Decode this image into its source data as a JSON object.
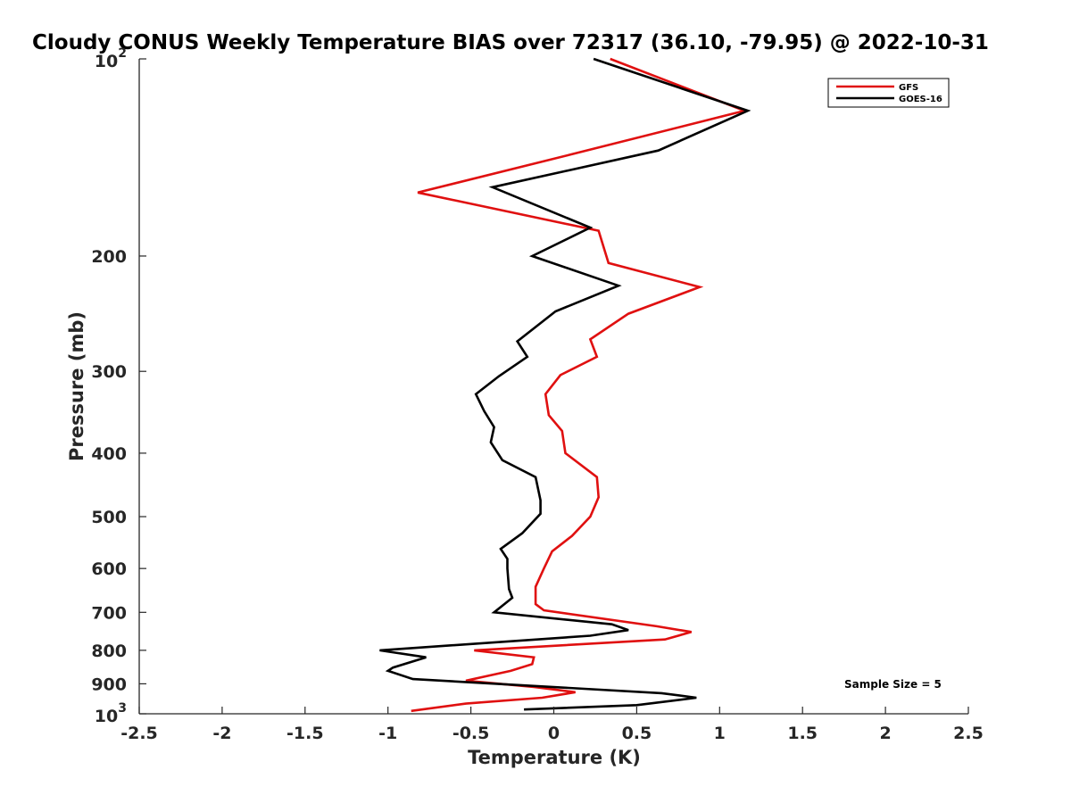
{
  "chart_data": {
    "type": "line",
    "title": "Cloudy CONUS Weekly Temperature BIAS over 72317 (36.10, -79.95) @ 2022-10-31",
    "xlabel": "Temperature (K)",
    "ylabel": "Pressure (mb)",
    "xlim": [
      -2.5,
      2.5
    ],
    "ylim": [
      1000,
      100
    ],
    "y_scale": "log",
    "y_reversed": true,
    "grid": false,
    "legend_position": "top-right",
    "x_ticks": [
      "-2.5",
      "-2",
      "-1.5",
      "-1",
      "-0.5",
      "0",
      "0.5",
      "1",
      "1.5",
      "2",
      "2.5"
    ],
    "y_ticks": [
      {
        "value": 100,
        "base": "10",
        "exp": "2"
      },
      {
        "value": 200,
        "label": "200"
      },
      {
        "value": 300,
        "label": "300"
      },
      {
        "value": 400,
        "label": "400"
      },
      {
        "value": 500,
        "label": "500"
      },
      {
        "value": 600,
        "label": "600"
      },
      {
        "value": 700,
        "label": "700"
      },
      {
        "value": 800,
        "label": "800"
      },
      {
        "value": 900,
        "label": "900"
      },
      {
        "value": 1000,
        "base": "10",
        "exp": "3"
      }
    ],
    "annotation": "Sample Size = 5",
    "series": [
      {
        "name": "GFS",
        "color": "#e01010",
        "points": [
          [
            0.34,
            100
          ],
          [
            1.15,
            120
          ],
          [
            0.1,
            140
          ],
          [
            -0.82,
            160
          ],
          [
            0.27,
            183
          ],
          [
            0.33,
            205
          ],
          [
            0.88,
            223
          ],
          [
            0.45,
            245
          ],
          [
            0.22,
            268
          ],
          [
            0.26,
            285
          ],
          [
            0.04,
            304
          ],
          [
            -0.05,
            325
          ],
          [
            -0.03,
            350
          ],
          [
            0.05,
            370
          ],
          [
            0.07,
            400
          ],
          [
            0.26,
            435
          ],
          [
            0.27,
            467
          ],
          [
            0.22,
            500
          ],
          [
            0.11,
            535
          ],
          [
            -0.01,
            565
          ],
          [
            -0.06,
            600
          ],
          [
            -0.11,
            640
          ],
          [
            -0.11,
            680
          ],
          [
            -0.06,
            695
          ],
          [
            0.62,
            735
          ],
          [
            0.83,
            750
          ],
          [
            0.67,
            770
          ],
          [
            -0.48,
            800
          ],
          [
            -0.12,
            820
          ],
          [
            -0.13,
            840
          ],
          [
            -0.26,
            860
          ],
          [
            -0.53,
            890
          ],
          [
            -0.12,
            910
          ],
          [
            0.13,
            927
          ],
          [
            -0.07,
            945
          ],
          [
            -0.53,
            965
          ],
          [
            -0.86,
            990
          ]
        ]
      },
      {
        "name": "GOES-16",
        "color": "#000000",
        "points": [
          [
            0.24,
            100
          ],
          [
            1.17,
            120
          ],
          [
            0.63,
            138
          ],
          [
            -0.37,
            157
          ],
          [
            0.22,
            181
          ],
          [
            -0.13,
            200
          ],
          [
            0.39,
            222
          ],
          [
            0.01,
            243
          ],
          [
            -0.22,
            270
          ],
          [
            -0.16,
            285
          ],
          [
            -0.33,
            305
          ],
          [
            -0.47,
            325
          ],
          [
            -0.42,
            345
          ],
          [
            -0.36,
            365
          ],
          [
            -0.38,
            385
          ],
          [
            -0.31,
            410
          ],
          [
            -0.11,
            435
          ],
          [
            -0.08,
            472
          ],
          [
            -0.08,
            495
          ],
          [
            -0.19,
            530
          ],
          [
            -0.32,
            560
          ],
          [
            -0.28,
            580
          ],
          [
            -0.28,
            600
          ],
          [
            -0.27,
            645
          ],
          [
            -0.25,
            665
          ],
          [
            -0.36,
            700
          ],
          [
            0.35,
            730
          ],
          [
            0.45,
            745
          ],
          [
            0.22,
            760
          ],
          [
            -1.05,
            800
          ],
          [
            -0.77,
            820
          ],
          [
            -0.97,
            850
          ],
          [
            -1.0,
            860
          ],
          [
            -0.85,
            885
          ],
          [
            0.65,
            930
          ],
          [
            0.86,
            945
          ],
          [
            0.5,
            970
          ],
          [
            -0.18,
            985
          ]
        ]
      }
    ]
  }
}
